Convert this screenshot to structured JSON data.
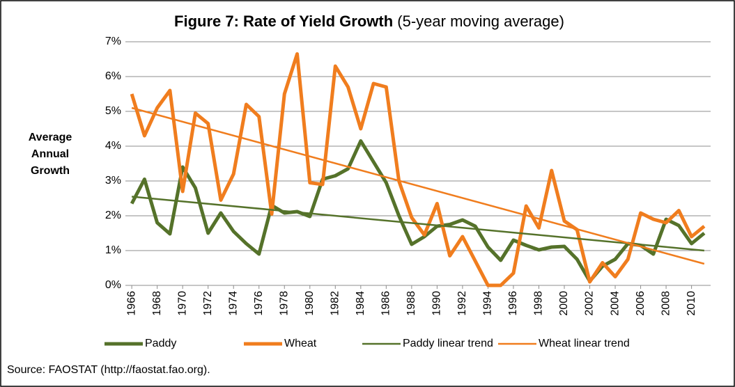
{
  "chart_data": {
    "type": "line",
    "title": "Figure 7: Rate of Yield Growth",
    "subtitle": "(5-year moving average)",
    "ylabel_lines": [
      "Average",
      "Annual",
      "Growth"
    ],
    "note": "Source: FAOSTAT (http://faostat.fao.org).",
    "x": [
      1966,
      1967,
      1968,
      1969,
      1970,
      1971,
      1972,
      1973,
      1974,
      1975,
      1976,
      1977,
      1978,
      1979,
      1980,
      1981,
      1982,
      1983,
      1984,
      1985,
      1986,
      1987,
      1988,
      1989,
      1990,
      1991,
      1992,
      1993,
      1994,
      1995,
      1996,
      1997,
      1998,
      1999,
      2000,
      2001,
      2002,
      2003,
      2004,
      2005,
      2006,
      2007,
      2008,
      2009,
      2010,
      2011
    ],
    "xlim": [
      1965.5,
      2011.5
    ],
    "xticks": [
      1966,
      1968,
      1970,
      1972,
      1974,
      1976,
      1978,
      1980,
      1982,
      1984,
      1986,
      1988,
      1990,
      1992,
      1994,
      1996,
      1998,
      2000,
      2002,
      2004,
      2006,
      2008,
      2010
    ],
    "ylim": [
      0,
      7
    ],
    "yticks": [
      {
        "value": 0,
        "label": "0%"
      },
      {
        "value": 1,
        "label": "1%"
      },
      {
        "value": 2,
        "label": "2%"
      },
      {
        "value": 3,
        "label": "3%"
      },
      {
        "value": 4,
        "label": "4%"
      },
      {
        "value": 5,
        "label": "5%"
      },
      {
        "value": 6,
        "label": "6%"
      },
      {
        "value": 7,
        "label": "7%"
      }
    ],
    "grid": true,
    "legend": "bottom",
    "series": [
      {
        "name": "Paddy",
        "color": "#55722a",
        "width": 5,
        "values": [
          2.35,
          3.05,
          1.8,
          1.48,
          3.4,
          2.8,
          1.5,
          2.08,
          1.55,
          1.2,
          0.9,
          2.3,
          2.08,
          2.12,
          1.98,
          3.05,
          3.15,
          3.35,
          4.15,
          3.55,
          2.95,
          2.0,
          1.18,
          1.4,
          1.7,
          1.75,
          1.88,
          1.7,
          1.1,
          0.72,
          1.3,
          1.15,
          1.02,
          1.1,
          1.12,
          0.75,
          0.12,
          0.55,
          0.75,
          1.2,
          1.15,
          0.9,
          1.9,
          1.72,
          1.2,
          1.5
        ]
      },
      {
        "name": "Wheat",
        "color": "#f07d1e",
        "width": 5,
        "values": [
          5.5,
          4.3,
          5.1,
          5.6,
          2.7,
          4.95,
          4.65,
          2.45,
          3.2,
          5.2,
          4.85,
          2.05,
          5.5,
          6.65,
          2.95,
          2.9,
          6.3,
          5.7,
          4.5,
          5.8,
          5.7,
          3.0,
          1.95,
          1.45,
          2.35,
          0.85,
          1.4,
          0.7,
          0.0,
          0.0,
          0.35,
          2.28,
          1.65,
          3.3,
          1.85,
          1.6,
          0.1,
          0.65,
          0.25,
          0.75,
          2.08,
          1.9,
          1.8,
          2.15,
          1.4,
          1.7
        ]
      },
      {
        "name": "Paddy linear trend",
        "color": "#55722a",
        "width": 2.5,
        "x": [
          1966,
          2011
        ],
        "values": [
          2.55,
          1.0
        ]
      },
      {
        "name": "Wheat linear trend",
        "color": "#f07d1e",
        "width": 2.5,
        "x": [
          1966,
          2011
        ],
        "values": [
          5.1,
          0.62
        ]
      }
    ]
  }
}
